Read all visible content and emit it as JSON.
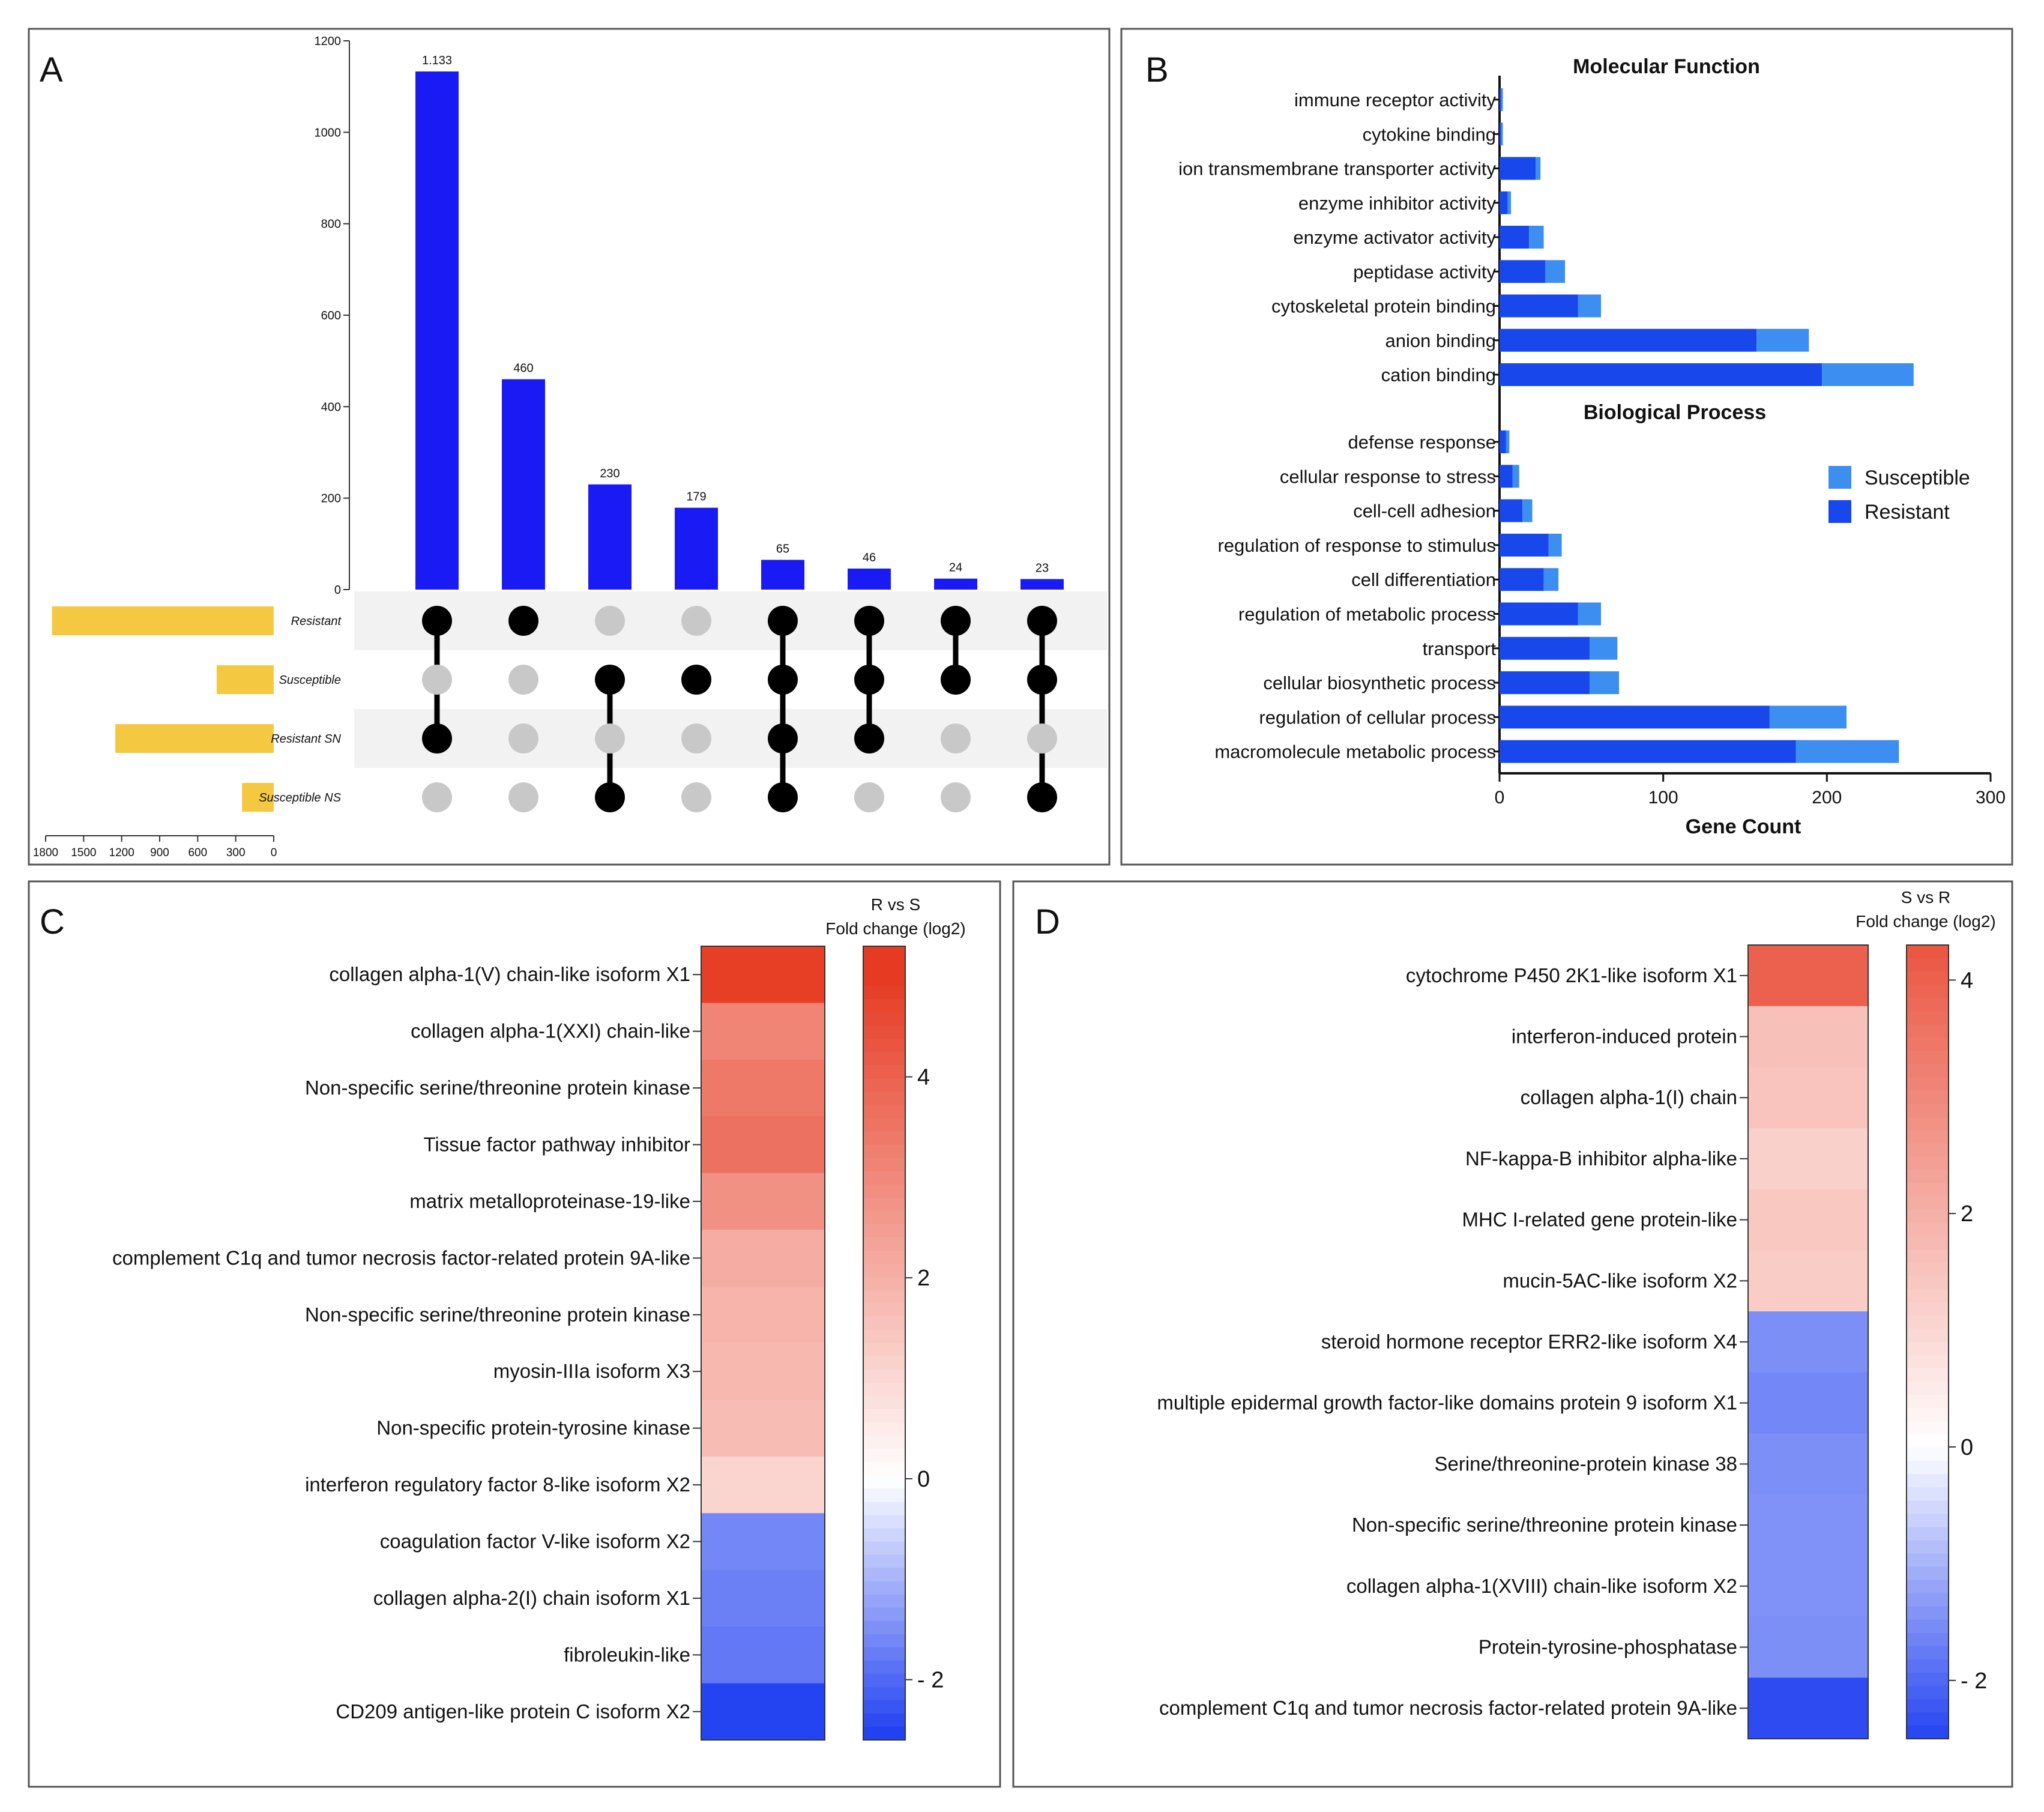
{
  "colors": {
    "upset_bar": "#1a1af5",
    "set_bar": "#f5c842",
    "dot_on": "#000000",
    "dot_off": "#c8c8c8",
    "stripe": "#f2f2f2",
    "resistant": "#1848ec",
    "susceptible": "#3c8ef0",
    "heat_low": "#1c3cf0",
    "heat_mid": "#ffffff",
    "heat_high": "#e63a22",
    "panel_border": "#555555"
  },
  "chart_data": [
    {
      "panel": "A",
      "type": "bar",
      "kind": "upset",
      "ylim": [
        0,
        1200
      ],
      "yticks": [
        0,
        200,
        400,
        600,
        800,
        1000,
        1200
      ],
      "values": [
        1133,
        460,
        230,
        179,
        65,
        46,
        24,
        23
      ],
      "value_labels": [
        "1.133",
        "460",
        "230",
        "179",
        "65",
        "46",
        "24",
        "23"
      ],
      "sets": [
        "Resistant",
        "Susceptible",
        "Resistant SN",
        "Susceptible NS"
      ],
      "set_sizes": [
        1750,
        450,
        1250,
        250
      ],
      "set_axis_ticks": [
        1800,
        1500,
        1200,
        900,
        600,
        300,
        0
      ],
      "membership": [
        [
          1,
          0,
          1,
          0
        ],
        [
          1,
          0,
          0,
          0
        ],
        [
          0,
          1,
          0,
          1
        ],
        [
          0,
          1,
          0,
          0
        ],
        [
          1,
          1,
          1,
          1
        ],
        [
          1,
          1,
          1,
          0
        ],
        [
          1,
          1,
          0,
          0
        ],
        [
          1,
          1,
          0,
          1
        ]
      ]
    },
    {
      "panel": "B",
      "type": "bar",
      "orientation": "horizontal",
      "stacked": true,
      "xlabel": "Gene Count",
      "xlim": [
        0,
        300
      ],
      "xticks": [
        0,
        100,
        200,
        300
      ],
      "series_names": [
        "Susceptible",
        "Resistant"
      ],
      "groups": [
        {
          "title": "Molecular Function",
          "categories": [
            "immune receptor activity",
            "cytokine binding",
            "ion transmembrane transporter activity",
            "enzyme inhibitor activity",
            "enzyme activator activity",
            "peptidase activity",
            "cytoskeletal protein binding",
            "anion binding",
            "cation binding"
          ],
          "resistant": [
            1,
            1,
            22,
            5,
            18,
            28,
            48,
            157,
            197
          ],
          "susceptible": [
            1,
            1,
            3,
            2,
            9,
            12,
            14,
            32,
            56
          ]
        },
        {
          "title": "Biological Process",
          "categories": [
            "defense response",
            "cellular response to stress",
            "cell-cell adhesion",
            "regulation of response to stimulus",
            "cell differentiation",
            "regulation of metabolic process",
            "transport",
            "cellular biosynthetic process",
            "regulation of cellular process",
            "macromolecule metabolic process"
          ],
          "resistant": [
            4,
            8,
            14,
            30,
            27,
            48,
            55,
            55,
            165,
            181
          ],
          "susceptible": [
            2,
            4,
            6,
            8,
            9,
            14,
            17,
            18,
            47,
            63
          ]
        }
      ]
    },
    {
      "panel": "C",
      "type": "heatmap",
      "title": "R vs S",
      "colorbar_label": "Fold change (log2)",
      "clim": [
        -2.6,
        5.3
      ],
      "colorbar_ticks": [
        -2,
        0,
        2,
        4
      ],
      "colorbar_tick_labels": [
        "- 2",
        "0",
        "2",
        "4"
      ],
      "rows": [
        "collagen alpha-1(V) chain-like isoform X1",
        "collagen alpha-1(XXI) chain-like",
        "Non-specific serine/threonine protein kinase",
        "Tissue factor pathway inhibitor",
        "matrix metalloproteinase-19-like",
        "complement C1q and tumor necrosis factor-related protein 9A-like",
        "Non-specific serine/threonine protein kinase",
        "myosin-IIIa isoform X3",
        "Non-specific protein-tyrosine kinase",
        "interferon regulatory factor 8-like isoform X2",
        "coagulation factor V-like isoform X2",
        "collagen alpha-2(I) chain isoform X1",
        "fibroleukin-like",
        "CD209 antigen-like protein C isoform X2"
      ],
      "values": [
        4.9,
        3.1,
        3.4,
        3.6,
        2.8,
        2.1,
        1.9,
        1.8,
        1.7,
        1.1,
        -1.6,
        -1.7,
        -1.8,
        -2.5
      ]
    },
    {
      "panel": "D",
      "type": "heatmap",
      "title": "S vs R",
      "colorbar_label": "Fold change (log2)",
      "clim": [
        -2.5,
        4.3
      ],
      "colorbar_ticks": [
        -2,
        0,
        2,
        4
      ],
      "colorbar_tick_labels": [
        "- 2",
        "0",
        "2",
        "4"
      ],
      "rows": [
        "cytochrome P450 2K1-like isoform X1",
        "interferon-induced protein",
        "collagen alpha-1(I) chain",
        "NF-kappa-B inhibitor alpha-like",
        "MHC I-related gene protein-like",
        "mucin-5AC-like isoform X2",
        "steroid hormone receptor ERR2-like isoform X4",
        "multiple epidermal growth factor-like domains protein 9 isoform X1",
        "Serine/threonine-protein kinase 38",
        "Non-specific serine/threonine protein kinase",
        "collagen alpha-1(XVIII) chain-like isoform X2",
        "Protein-tyrosine-phosphatase",
        "complement C1q and tumor necrosis factor-related protein 9A-like"
      ],
      "values": [
        4.0,
        1.6,
        1.5,
        1.2,
        1.4,
        1.3,
        -1.5,
        -1.6,
        -1.5,
        -1.45,
        -1.45,
        -1.5,
        -2.4
      ]
    }
  ],
  "panels": {
    "A": {
      "label": "A"
    },
    "B": {
      "label": "B"
    },
    "C": {
      "label": "C"
    },
    "D": {
      "label": "D"
    }
  }
}
